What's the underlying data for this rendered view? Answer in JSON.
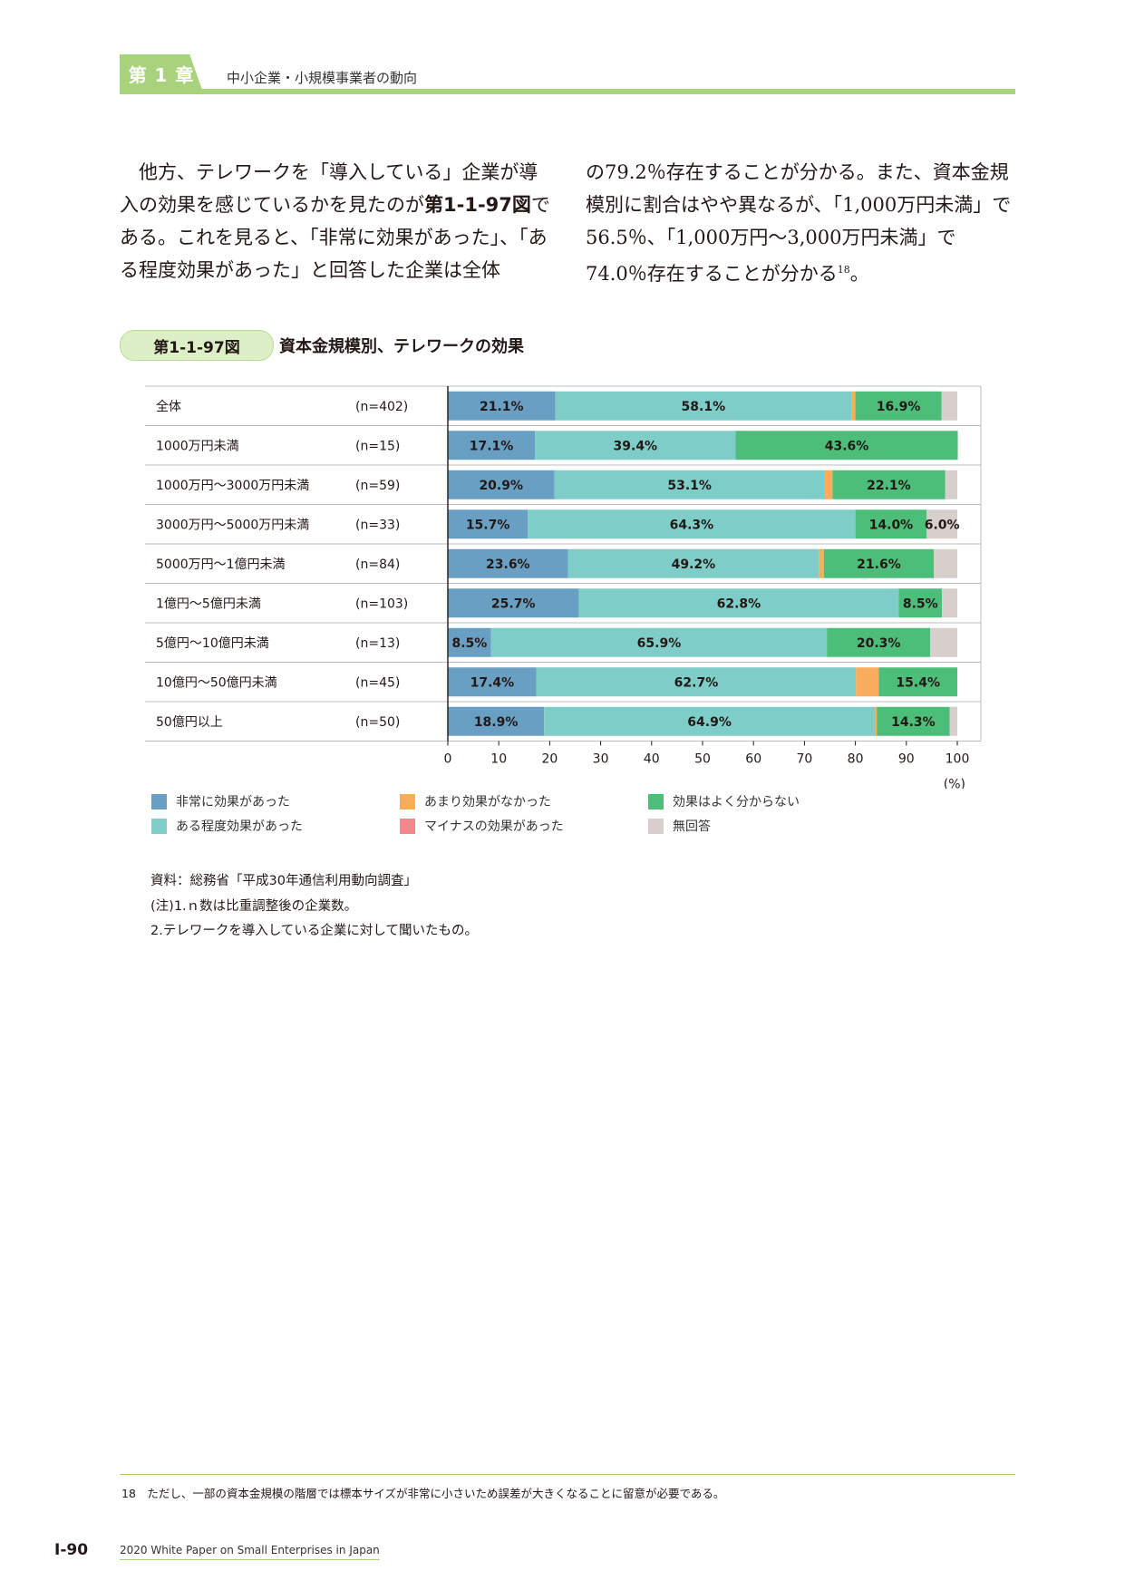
{
  "header": {
    "chapter_label": "第 1 章",
    "chapter_title": "中小企業・小規模事業者の動向"
  },
  "body_text": {
    "left_pre": "　他方、テレワークを「導入している」企業が導入の効果を感じているかを見たのが",
    "left_ref": "第1-1-97図",
    "left_post": "である。これを見ると、「非常に効果があった」、「ある程度効果があった」と回答した企業は全体",
    "right_main": "の79.2％存在することが分かる。また、資本金規模別に割合はやや異なるが、「1,000万円未満」で56.5％、「1,000万円～3,000万円未満」で74.0％存在することが分かる",
    "right_sup": "18",
    "right_end": "。"
  },
  "figure": {
    "label": "第1-1-97図",
    "title": "資本金規模別、テレワークの効果"
  },
  "chart_data": {
    "type": "bar",
    "orientation": "horizontal",
    "stacked": true,
    "xlim": [
      0,
      100
    ],
    "x_ticks": [
      "0",
      "10",
      "20",
      "30",
      "40",
      "50",
      "60",
      "70",
      "80",
      "90",
      "100"
    ],
    "x_unit": "(%)",
    "categories": [
      "全体",
      "1000万円未満",
      "1000万円～3000万円未満",
      "3000万円～5000万円未満",
      "5000万円～1億円未満",
      "1億円～5億円未満",
      "5億円～10億円未満",
      "10億円～50億円未満",
      "50億円以上"
    ],
    "n_labels": [
      "(n=402)",
      "(n=15)",
      "(n=59)",
      "(n=33)",
      "(n=84)",
      "(n=103)",
      "(n=13)",
      "(n=45)",
      "(n=50)"
    ],
    "series": [
      {
        "name": "非常に効果があった",
        "color": "#6a9fc4",
        "values": [
          21.1,
          17.1,
          20.9,
          15.7,
          23.6,
          25.7,
          8.5,
          17.4,
          18.9
        ]
      },
      {
        "name": "ある程度効果があった",
        "color": "#7ecdc8",
        "values": [
          58.1,
          39.4,
          53.1,
          64.3,
          49.2,
          62.8,
          65.9,
          62.7,
          64.9
        ]
      },
      {
        "name": "あまり効果がなかった",
        "color": "#f7ad5c",
        "values": [
          0.8,
          0.0,
          1.5,
          0.0,
          1.0,
          0.0,
          0.0,
          4.5,
          0.4
        ]
      },
      {
        "name": "マイナスの効果があった",
        "color": "#f2888e",
        "values": [
          0.0,
          0.0,
          0.0,
          0.0,
          0.0,
          0.0,
          0.0,
          0.0,
          0.0
        ]
      },
      {
        "name": "効果はよく分からない",
        "color": "#4dbd7a",
        "values": [
          16.9,
          43.6,
          22.1,
          14.0,
          21.6,
          8.5,
          20.3,
          15.4,
          14.3
        ]
      },
      {
        "name": "無回答",
        "color": "#d6cfcc",
        "values": [
          3.1,
          0.0,
          2.4,
          6.0,
          4.6,
          3.0,
          5.3,
          0.0,
          1.5
        ]
      }
    ],
    "data_labels": [
      [
        "21.1%",
        "58.1%",
        "",
        "",
        "16.9%",
        ""
      ],
      [
        "17.1%",
        "39.4%",
        "",
        "",
        "43.6%",
        ""
      ],
      [
        "20.9%",
        "53.1%",
        "",
        "",
        "22.1%",
        ""
      ],
      [
        "15.7%",
        "64.3%",
        "",
        "",
        "14.0%",
        "6.0%"
      ],
      [
        "23.6%",
        "49.2%",
        "",
        "",
        "21.6%",
        ""
      ],
      [
        "25.7%",
        "62.8%",
        "",
        "",
        "8.5%",
        ""
      ],
      [
        "8.5%",
        "65.9%",
        "",
        "",
        "20.3%",
        ""
      ],
      [
        "17.4%",
        "62.7%",
        "",
        "",
        "15.4%",
        ""
      ],
      [
        "18.9%",
        "64.9%",
        "",
        "",
        "14.3%",
        ""
      ]
    ],
    "legend_position": "bottom"
  },
  "notes": {
    "source": "資料：総務省「平成30年通信利用動向調査」",
    "note1": "(注)1.ｎ数は比重調整後の企業数。",
    "note2": "2.テレワークを導入している企業に対して聞いたもの。"
  },
  "footnote": "18　ただし、一部の資本金規模の階層では標本サイズが非常に小さいため誤差が大きくなることに留意が必要である。",
  "footer": {
    "page_number": "I-90",
    "publication": "2020 White Paper on Small Enterprises in Japan"
  }
}
